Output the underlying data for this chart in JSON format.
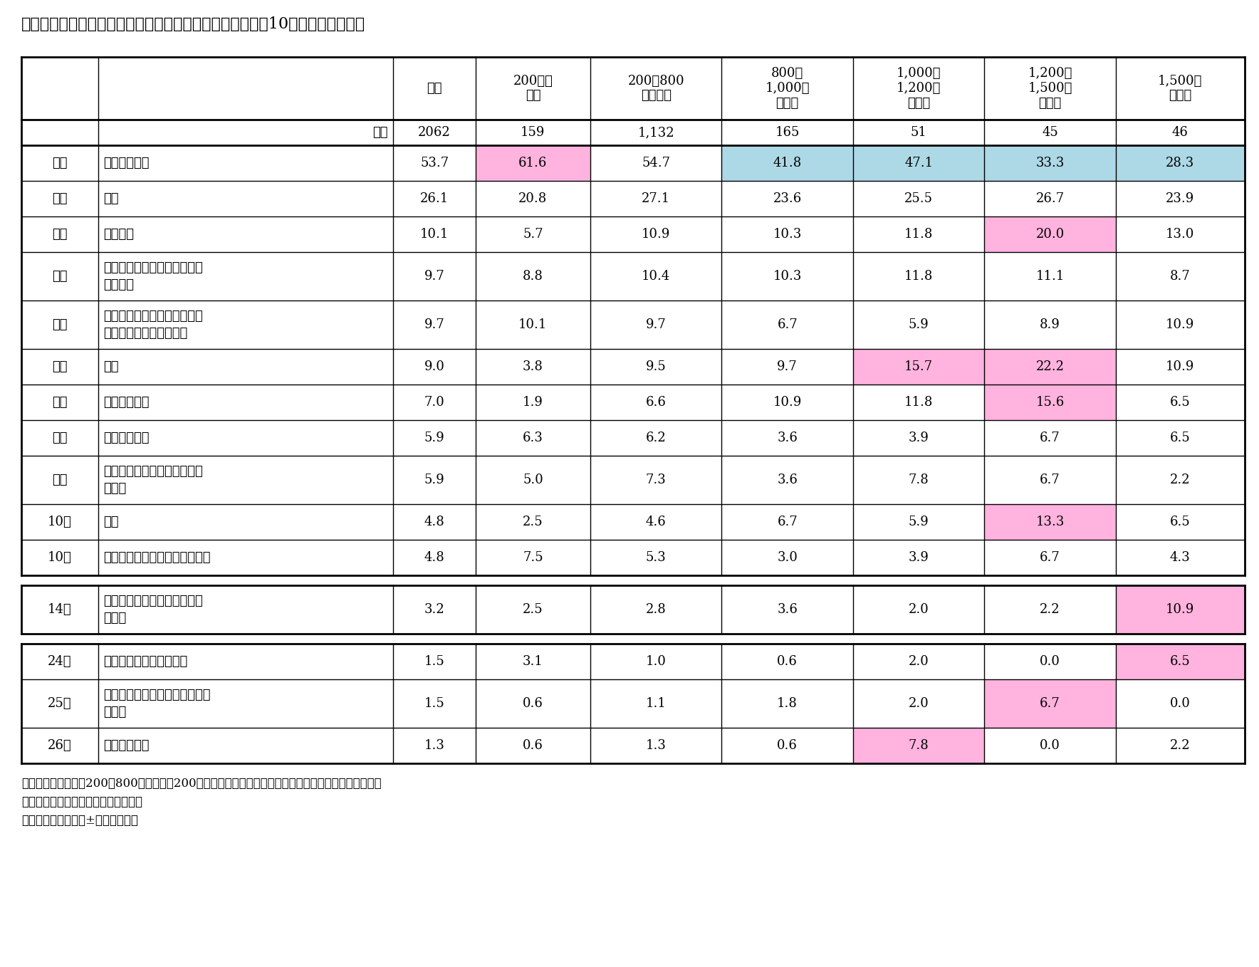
{
  "title": "図表６　世帯年収別に見た特別定額給付金の使い道　上位10位等（複数選択）",
  "notes": [
    "（注１）　世帯年収200〜800万円未満は200万円きざみで見ても全体と同様であったためあわせている",
    "（注２）　いずれも順位は全体のもの",
    "（注３）　全体より±５％に網掛け"
  ]
}
